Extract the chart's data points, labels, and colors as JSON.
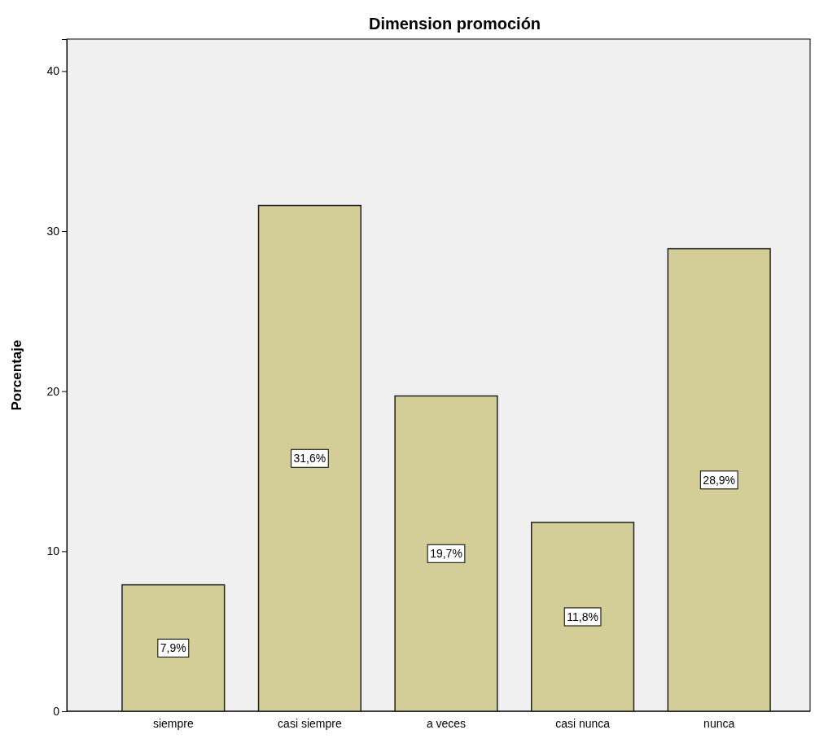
{
  "chart_data": {
    "type": "bar",
    "title": "Dimension promoción",
    "ylabel": "Porcentaje",
    "categories": [
      "siempre",
      "casi siempre",
      "a veces",
      "casi nunca",
      "nunca"
    ],
    "values": [
      7.9,
      31.6,
      19.7,
      11.8,
      28.9
    ],
    "value_labels": [
      "7,9%",
      "31,6%",
      "19,7%",
      "11,8%",
      "28,9%"
    ],
    "color": "#d3ce97",
    "ylim": [
      0,
      42
    ],
    "yticks": [
      0,
      10,
      20,
      30,
      40
    ],
    "grid": false
  }
}
